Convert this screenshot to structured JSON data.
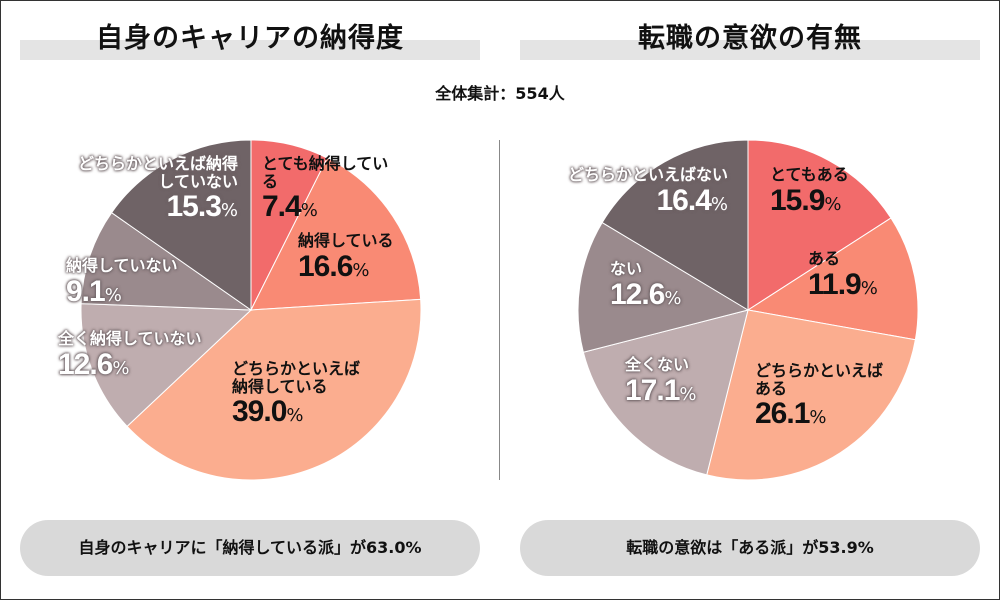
{
  "total_label": "全体集計：554人",
  "chart_data": [
    {
      "type": "pie",
      "title": "自身のキャリアの納得度",
      "categories": [
        "とても納得している",
        "納得している",
        "どちらかといえば納得している",
        "全く納得していない",
        "納得していない",
        "どちらかといえば納得していない"
      ],
      "values": [
        7.4,
        16.6,
        39.0,
        12.6,
        9.1,
        15.3
      ],
      "value_labels": [
        "7.4",
        "16.6",
        "39.0",
        "12.6",
        "9.1",
        "15.3"
      ],
      "unit": "%",
      "colors": [
        "#f26b6b",
        "#f98a74",
        "#fbad8f",
        "#bfadaf",
        "#9a8a8d",
        "#6f6366"
      ],
      "summary": "自身のキャリアに「納得している派」が63.0%"
    },
    {
      "type": "pie",
      "title": "転職の意欲の有無",
      "categories": [
        "とてもある",
        "ある",
        "どちらかといえばある",
        "全くない",
        "ない",
        "どちらかといえばない"
      ],
      "values": [
        15.9,
        11.9,
        26.1,
        17.1,
        12.6,
        16.4
      ],
      "value_labels": [
        "15.9",
        "11.9",
        "26.1",
        "17.1",
        "12.6",
        "16.4"
      ],
      "unit": "%",
      "colors": [
        "#f26b6b",
        "#f98a74",
        "#fbad8f",
        "#bfadaf",
        "#9a8a8d",
        "#6f6366"
      ],
      "summary": "転職の意欲は「ある派」が53.9%"
    }
  ]
}
